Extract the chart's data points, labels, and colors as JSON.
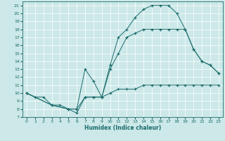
{
  "xlabel": "Humidex (Indice chaleur)",
  "background_color": "#cce8e8",
  "line_color": "#1a6b6b",
  "grid_color": "#ffffff",
  "xlim": [
    -0.5,
    23.5
  ],
  "ylim": [
    7,
    21.5
  ],
  "xticks": [
    0,
    1,
    2,
    3,
    4,
    5,
    6,
    7,
    8,
    9,
    10,
    11,
    12,
    13,
    14,
    15,
    16,
    17,
    18,
    19,
    20,
    21,
    22,
    23
  ],
  "yticks": [
    7,
    8,
    9,
    10,
    11,
    12,
    13,
    14,
    15,
    16,
    17,
    18,
    19,
    20,
    21
  ],
  "line1_x": [
    0,
    1,
    2,
    3,
    4,
    5,
    6,
    7,
    8,
    9,
    10,
    11,
    12,
    13,
    14,
    15,
    16,
    17,
    18,
    19,
    20,
    21,
    22,
    23
  ],
  "line1_y": [
    10,
    9.5,
    9.5,
    8.5,
    8.5,
    8,
    7.5,
    9.5,
    9.5,
    9.5,
    10,
    10.5,
    10.5,
    10.5,
    11,
    11,
    11,
    11,
    11,
    11,
    11,
    11,
    11,
    11
  ],
  "line2_x": [
    0,
    3,
    5,
    6,
    7,
    8,
    9,
    10,
    11,
    12,
    13,
    14,
    15,
    16,
    17,
    18,
    19,
    20,
    21,
    22,
    23
  ],
  "line2_y": [
    10,
    8.5,
    8,
    8,
    13,
    11.5,
    9.5,
    13,
    15,
    17,
    17.5,
    18,
    18,
    18,
    18,
    18,
    18,
    15.5,
    14,
    13.5,
    12.5
  ],
  "line3_x": [
    0,
    3,
    5,
    6,
    7,
    8,
    9,
    10,
    11,
    12,
    13,
    14,
    15,
    16,
    17,
    18,
    19,
    20,
    21,
    22,
    23
  ],
  "line3_y": [
    10,
    8.5,
    8,
    8,
    9.5,
    9.5,
    9.5,
    13.5,
    17,
    18,
    19.5,
    20.5,
    21,
    21,
    21,
    20,
    18,
    15.5,
    14,
    13.5,
    12.5
  ]
}
